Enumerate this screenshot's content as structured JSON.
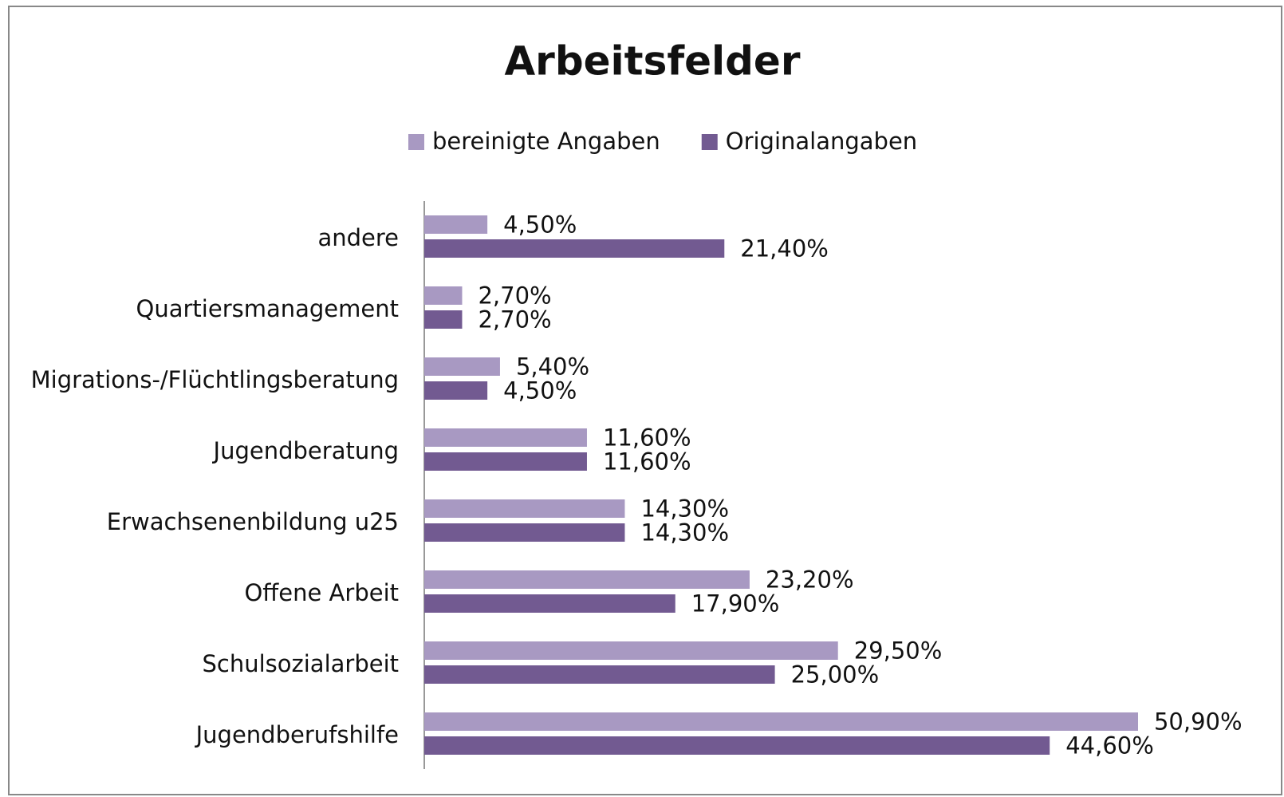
{
  "chart_data": {
    "type": "bar",
    "orientation": "horizontal",
    "title": "Arbeitsfelder",
    "categories": [
      "andere",
      "Quartiersmanagement",
      "Migrations-/Flüchtlingsberatung",
      "Jugendberatung",
      "Erwachsenenbildung u25",
      "Offene Arbeit",
      "Schulsozialarbeit",
      "Jugendberufshilfe"
    ],
    "series": [
      {
        "name": "bereinigte Angaben",
        "color": "#a899c2",
        "values": [
          4.5,
          2.7,
          5.4,
          11.6,
          14.3,
          23.2,
          29.5,
          50.9
        ],
        "value_labels": [
          "4,50%",
          "2,70%",
          "5,40%",
          "11,60%",
          "14,30%",
          "23,20%",
          "29,50%",
          "50,90%"
        ]
      },
      {
        "name": "Originalangaben",
        "color": "#725a91",
        "values": [
          21.4,
          2.7,
          4.5,
          11.6,
          14.3,
          17.9,
          25.0,
          44.6
        ],
        "value_labels": [
          "21,40%",
          "2,70%",
          "4,50%",
          "11,60%",
          "14,30%",
          "17,90%",
          "25,00%",
          "44,60%"
        ]
      }
    ],
    "xlim": [
      0,
      60
    ],
    "legend": "top"
  }
}
